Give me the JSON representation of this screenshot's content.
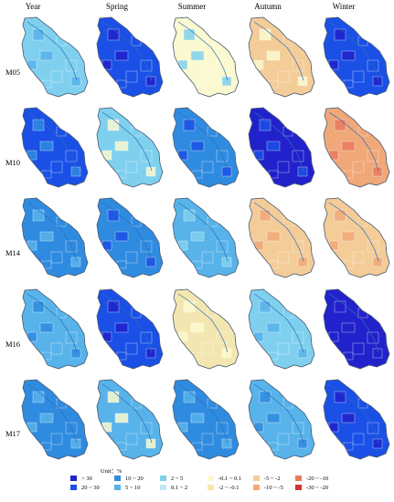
{
  "columns": [
    "Year",
    "Spring",
    "Summer",
    "Autumn",
    "Winter"
  ],
  "rows": [
    "M05",
    "M10",
    "M14",
    "M16",
    "M17"
  ],
  "legend": {
    "unit": "Unit：%",
    "classes": [
      {
        "label": "> 30",
        "color": "#2222cc"
      },
      {
        "label": "20 ~ 30",
        "color": "#1a50e6"
      },
      {
        "label": "10 ~ 20",
        "color": "#2f8be0"
      },
      {
        "label": "5 ~ 10",
        "color": "#57b3ea"
      },
      {
        "label": "2 ~ 5",
        "color": "#7fd0ee"
      },
      {
        "label": "0.1 ~ 2",
        "color": "#bde9f5"
      },
      {
        "label": "-0.1 ~ 0.1",
        "color": "#fbf9cf"
      },
      {
        "label": "-2 ~ -0.1",
        "color": "#f3e6b0"
      },
      {
        "label": "-5 ~ -2",
        "color": "#f4cc98"
      },
      {
        "label": "-10 ~ -5",
        "color": "#f0a878"
      },
      {
        "label": "-20 ~ -10",
        "color": "#ea7a60"
      },
      {
        "label": "-30 ~ -20",
        "color": "#d93030"
      }
    ]
  },
  "maps": [
    [
      "#7fd0ee",
      "#1a50e6",
      "#fbf9cf",
      "#f4cc98",
      "#1a50e6"
    ],
    [
      "#1a50e6",
      "#7fd0ee",
      "#2f8be0",
      "#2222cc",
      "#f0a878"
    ],
    [
      "#2f8be0",
      "#2f8be0",
      "#57b3ea",
      "#f4cc98",
      "#f4cc98"
    ],
    [
      "#57b3ea",
      "#1a50e6",
      "#f3e6b0",
      "#7fd0ee",
      "#2222cc"
    ],
    [
      "#2f8be0",
      "#57b3ea",
      "#2f8be0",
      "#57b3ea",
      "#1a50e6"
    ]
  ],
  "accents": [
    [
      "#57b3ea",
      "#2222cc",
      "#7fd0ee",
      "#fbf9cf",
      "#2222cc"
    ],
    [
      "#2f8be0",
      "#fbf9cf",
      "#1a50e6",
      "#1a50e6",
      "#ea7a60"
    ],
    [
      "#57b3ea",
      "#1a50e6",
      "#7fd0ee",
      "#f0a878",
      "#f0a878"
    ],
    [
      "#2f8be0",
      "#2222cc",
      "#fbf9cf",
      "#57b3ea",
      "#2222cc"
    ],
    [
      "#57b3ea",
      "#fbf9cf",
      "#57b3ea",
      "#2f8be0",
      "#2222cc"
    ]
  ]
}
